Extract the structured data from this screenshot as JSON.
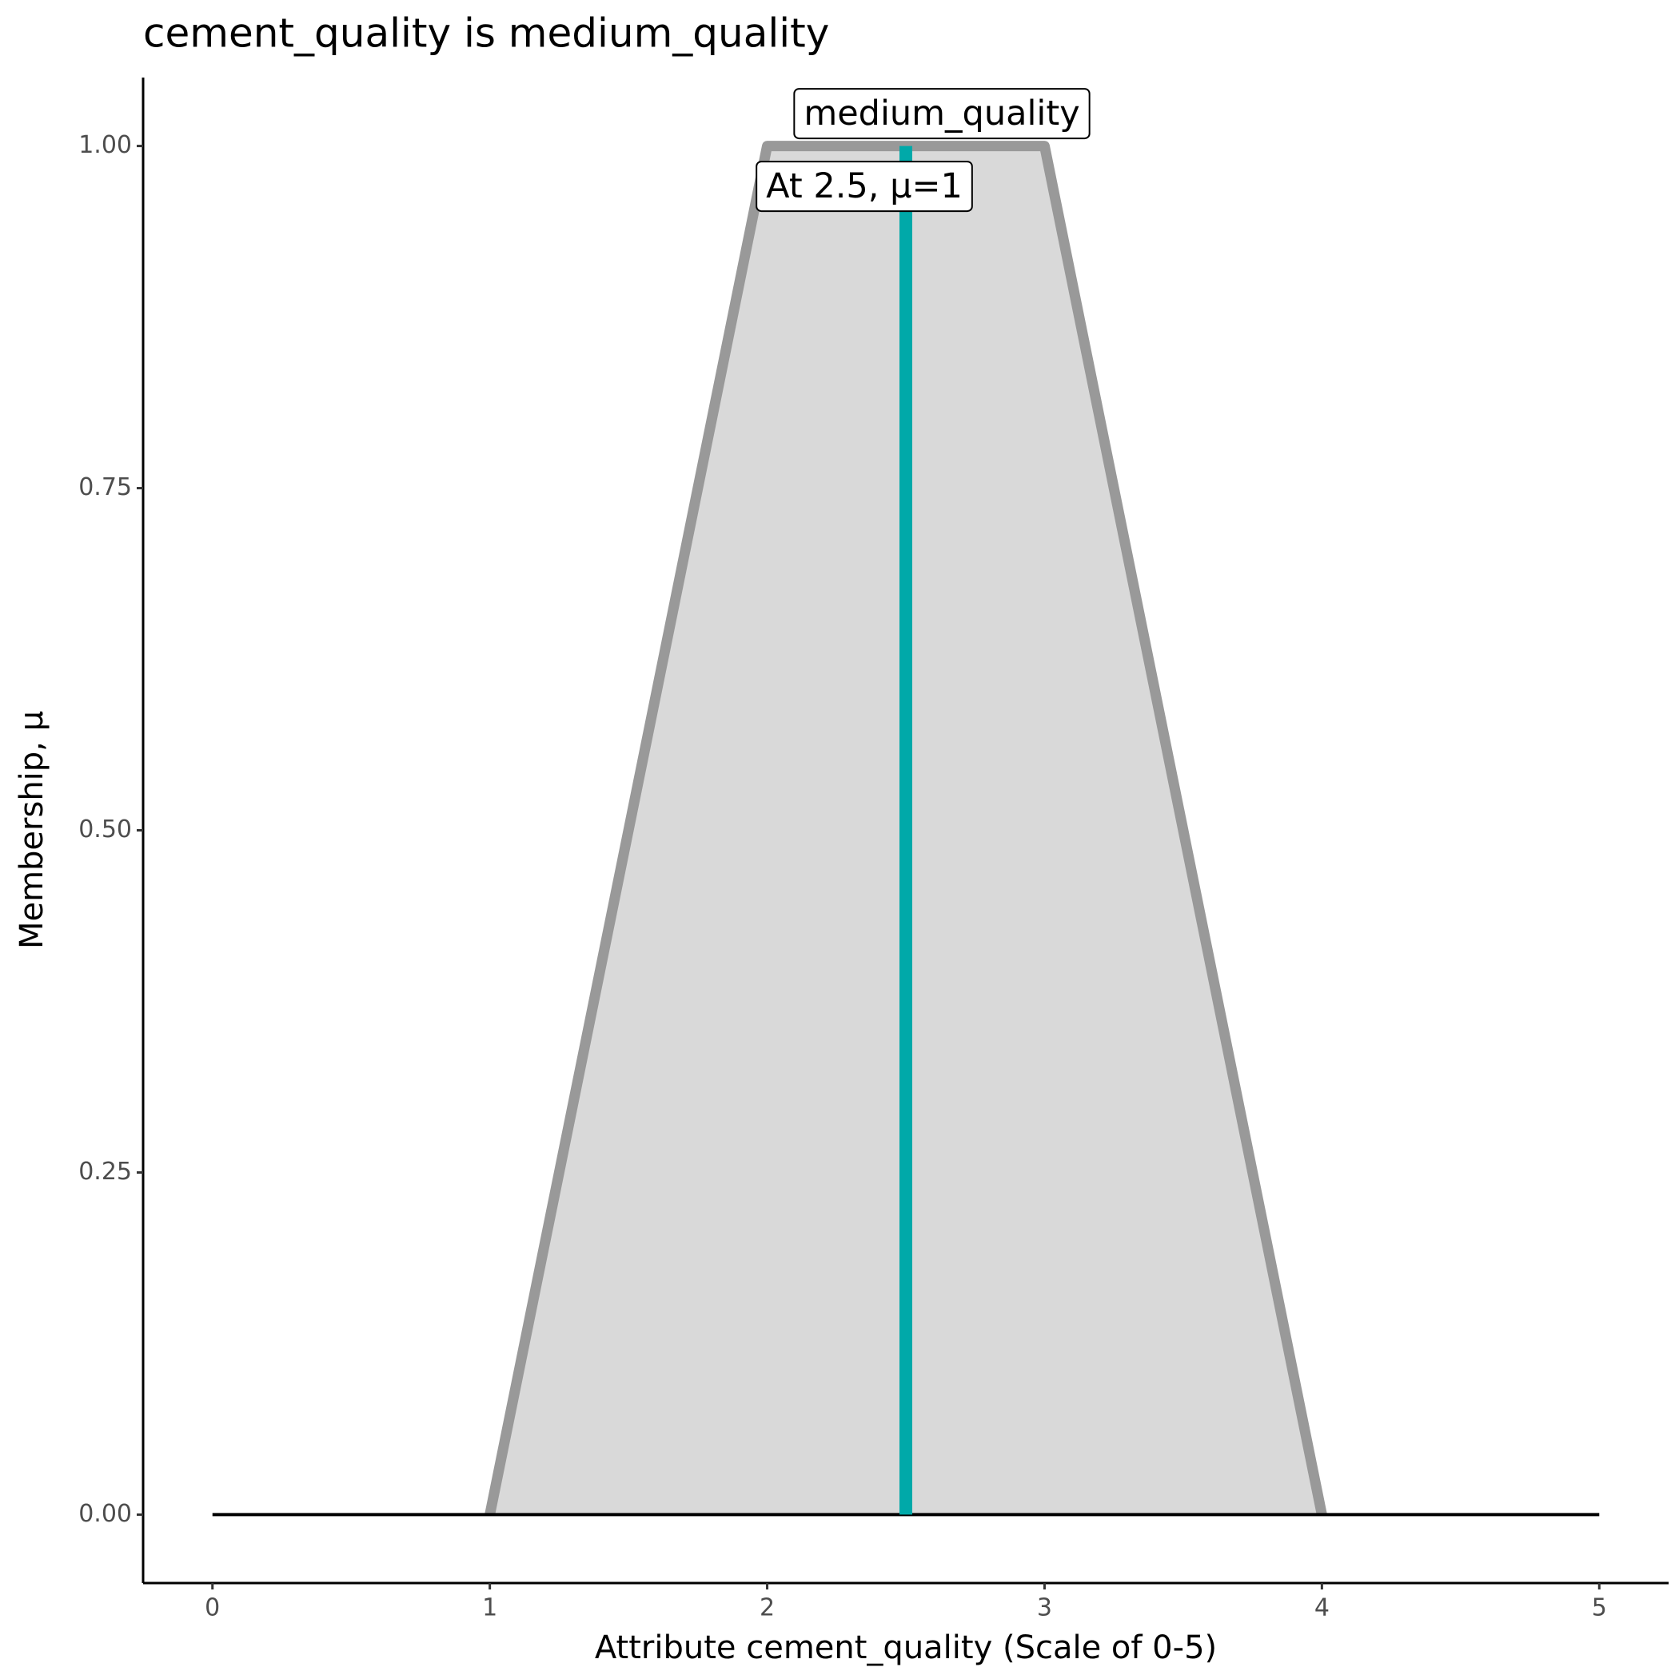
{
  "chart_data": {
    "type": "line",
    "title": "cement_quality is medium_quality",
    "x_label": "Attribute cement_quality (Scale of 0-5)",
    "y_label": "Membership, μ",
    "series": [
      {
        "name": "medium_quality",
        "color": "#999999",
        "fill": "#d9d9d9",
        "x": [
          1,
          2,
          3,
          4
        ],
        "values": [
          0,
          1,
          1,
          0
        ]
      }
    ],
    "baseline": {
      "x": [
        0,
        5
      ],
      "values": [
        0,
        0
      ],
      "color": "#000000"
    },
    "marker": {
      "x": 2.5,
      "value": 1,
      "color": "#00a9a9",
      "label": "At 2.5, μ=1"
    },
    "xlim": [
      -0.25,
      5.25
    ],
    "ylim": [
      -0.05,
      1.05
    ],
    "xticks": [
      0,
      1,
      2,
      3,
      4,
      5
    ],
    "yticks": [
      {
        "value": 0,
        "label": "0.00"
      },
      {
        "value": 0.25,
        "label": "0.25"
      },
      {
        "value": 0.5,
        "label": "0.50"
      },
      {
        "value": 0.75,
        "label": "0.75"
      },
      {
        "value": 1,
        "label": "1.00"
      }
    ],
    "grid": false
  }
}
